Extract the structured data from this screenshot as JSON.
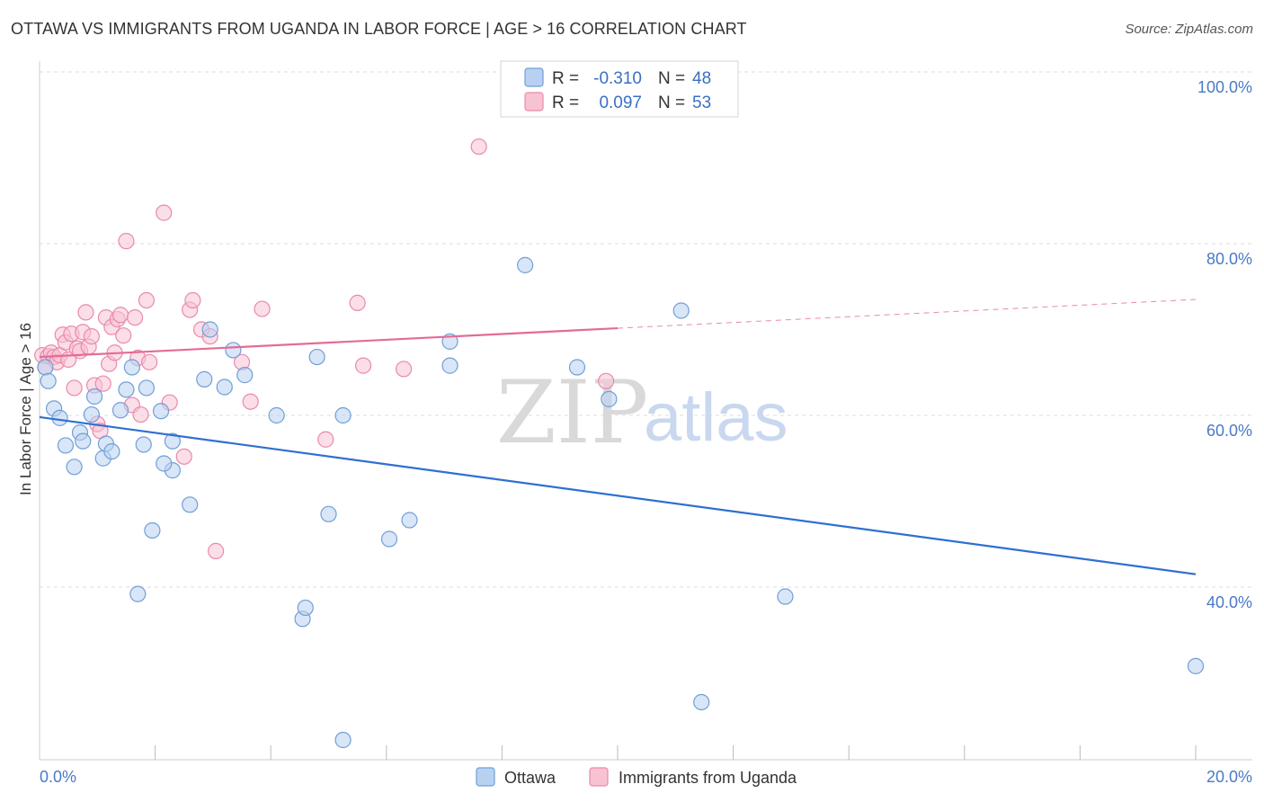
{
  "title": "OTTAWA VS IMMIGRANTS FROM UGANDA IN LABOR FORCE | AGE > 16 CORRELATION CHART",
  "source": "Source: ZipAtlas.com",
  "watermark": {
    "zip": "ZIP",
    "atlas": "atlas"
  },
  "colors": {
    "ottawa_fill": "#b9d1f0",
    "ottawa_stroke": "#6f9fd8",
    "ottawa_line": "#2f6fd0",
    "uganda_fill": "#f7c3d3",
    "uganda_stroke": "#e98aaa",
    "uganda_line": "#e46b95",
    "grid": "#dddddd",
    "tick_text": "#4a79c8"
  },
  "stats": {
    "row1": {
      "r_label": "R =",
      "r_value": "-0.310",
      "n_label": "N =",
      "n_value": "48"
    },
    "row2": {
      "r_label": "R =",
      "r_value": "0.097",
      "n_label": "N =",
      "n_value": "53"
    }
  },
  "legend": {
    "ottawa": "Ottawa",
    "uganda": "Immigrants from Uganda"
  },
  "chart_data": {
    "type": "scatter",
    "title": "OTTAWA VS IMMIGRANTS FROM UGANDA IN LABOR FORCE | AGE > 16 CORRELATION CHART",
    "xlabel": "",
    "ylabel": "In Labor Force | Age > 16",
    "xlim": [
      0,
      20
    ],
    "ylim": [
      20,
      102
    ],
    "x_tick_labels": {
      "min": "0.0%",
      "max": "20.0%"
    },
    "y_ticks": [
      {
        "value": 100,
        "label": "100.0%"
      },
      {
        "value": 80,
        "label": "80.0%"
      },
      {
        "value": 60,
        "label": "60.0%"
      },
      {
        "value": 40,
        "label": "40.0%"
      }
    ],
    "series": [
      {
        "name": "Ottawa",
        "trend": {
          "x0": 0,
          "y0": 59.8,
          "x1": 20,
          "y1": 41.5,
          "solid_to": 20
        },
        "points": [
          [
            0.1,
            65.6
          ],
          [
            0.15,
            64.0
          ],
          [
            0.25,
            60.8
          ],
          [
            0.35,
            59.7
          ],
          [
            0.45,
            56.5
          ],
          [
            0.6,
            54.0
          ],
          [
            0.7,
            58.0
          ],
          [
            0.75,
            57.0
          ],
          [
            0.9,
            60.1
          ],
          [
            0.95,
            62.2
          ],
          [
            1.1,
            55.0
          ],
          [
            1.15,
            56.7
          ],
          [
            1.25,
            55.8
          ],
          [
            1.4,
            60.6
          ],
          [
            1.5,
            63.0
          ],
          [
            1.6,
            65.6
          ],
          [
            1.7,
            39.2
          ],
          [
            1.8,
            56.6
          ],
          [
            1.85,
            63.2
          ],
          [
            1.95,
            46.6
          ],
          [
            2.1,
            60.5
          ],
          [
            2.3,
            57.0
          ],
          [
            2.3,
            53.6
          ],
          [
            2.15,
            54.4
          ],
          [
            2.6,
            49.6
          ],
          [
            2.85,
            64.2
          ],
          [
            2.95,
            70.0
          ],
          [
            3.2,
            63.3
          ],
          [
            3.35,
            67.6
          ],
          [
            3.55,
            64.7
          ],
          [
            4.1,
            60.0
          ],
          [
            4.55,
            36.3
          ],
          [
            4.6,
            37.6
          ],
          [
            4.8,
            66.8
          ],
          [
            5.0,
            48.5
          ],
          [
            5.25,
            60.0
          ],
          [
            5.25,
            22.2
          ],
          [
            6.05,
            45.6
          ],
          [
            6.4,
            47.8
          ],
          [
            7.1,
            65.8
          ],
          [
            7.1,
            68.6
          ],
          [
            8.4,
            77.5
          ],
          [
            9.3,
            65.6
          ],
          [
            9.85,
            61.9
          ],
          [
            11.1,
            72.2
          ],
          [
            11.45,
            26.6
          ],
          [
            12.9,
            38.9
          ],
          [
            20.0,
            30.8
          ]
        ]
      },
      {
        "name": "Immigrants from Uganda",
        "trend": {
          "x0": 0,
          "y0": 66.8,
          "x1": 20,
          "y1": 73.5,
          "solid_to": 10
        },
        "points": [
          [
            0.05,
            67.0
          ],
          [
            0.1,
            65.6
          ],
          [
            0.15,
            66.9
          ],
          [
            0.2,
            67.3
          ],
          [
            0.25,
            66.8
          ],
          [
            0.3,
            66.2
          ],
          [
            0.35,
            67.0
          ],
          [
            0.4,
            69.4
          ],
          [
            0.45,
            68.5
          ],
          [
            0.5,
            66.5
          ],
          [
            0.55,
            69.5
          ],
          [
            0.6,
            63.2
          ],
          [
            0.65,
            67.8
          ],
          [
            0.7,
            67.5
          ],
          [
            0.75,
            69.7
          ],
          [
            0.8,
            72.0
          ],
          [
            0.85,
            68.0
          ],
          [
            0.9,
            69.2
          ],
          [
            0.95,
            63.5
          ],
          [
            1.0,
            59.0
          ],
          [
            1.05,
            58.2
          ],
          [
            1.1,
            63.7
          ],
          [
            1.15,
            71.4
          ],
          [
            1.2,
            66.0
          ],
          [
            1.25,
            70.3
          ],
          [
            1.3,
            67.3
          ],
          [
            1.35,
            71.2
          ],
          [
            1.4,
            71.7
          ],
          [
            1.45,
            69.3
          ],
          [
            1.5,
            80.3
          ],
          [
            1.6,
            61.2
          ],
          [
            1.65,
            71.4
          ],
          [
            1.7,
            66.7
          ],
          [
            1.75,
            60.1
          ],
          [
            1.85,
            73.4
          ],
          [
            1.9,
            66.2
          ],
          [
            2.15,
            83.6
          ],
          [
            2.25,
            61.5
          ],
          [
            2.5,
            55.2
          ],
          [
            2.6,
            72.3
          ],
          [
            2.65,
            73.4
          ],
          [
            2.8,
            70.0
          ],
          [
            2.95,
            69.2
          ],
          [
            3.05,
            44.2
          ],
          [
            3.5,
            66.2
          ],
          [
            3.65,
            61.6
          ],
          [
            3.85,
            72.4
          ],
          [
            4.95,
            57.2
          ],
          [
            5.5,
            73.1
          ],
          [
            5.6,
            65.8
          ],
          [
            6.3,
            65.4
          ],
          [
            7.6,
            91.3
          ],
          [
            9.8,
            64.0
          ]
        ]
      }
    ]
  }
}
